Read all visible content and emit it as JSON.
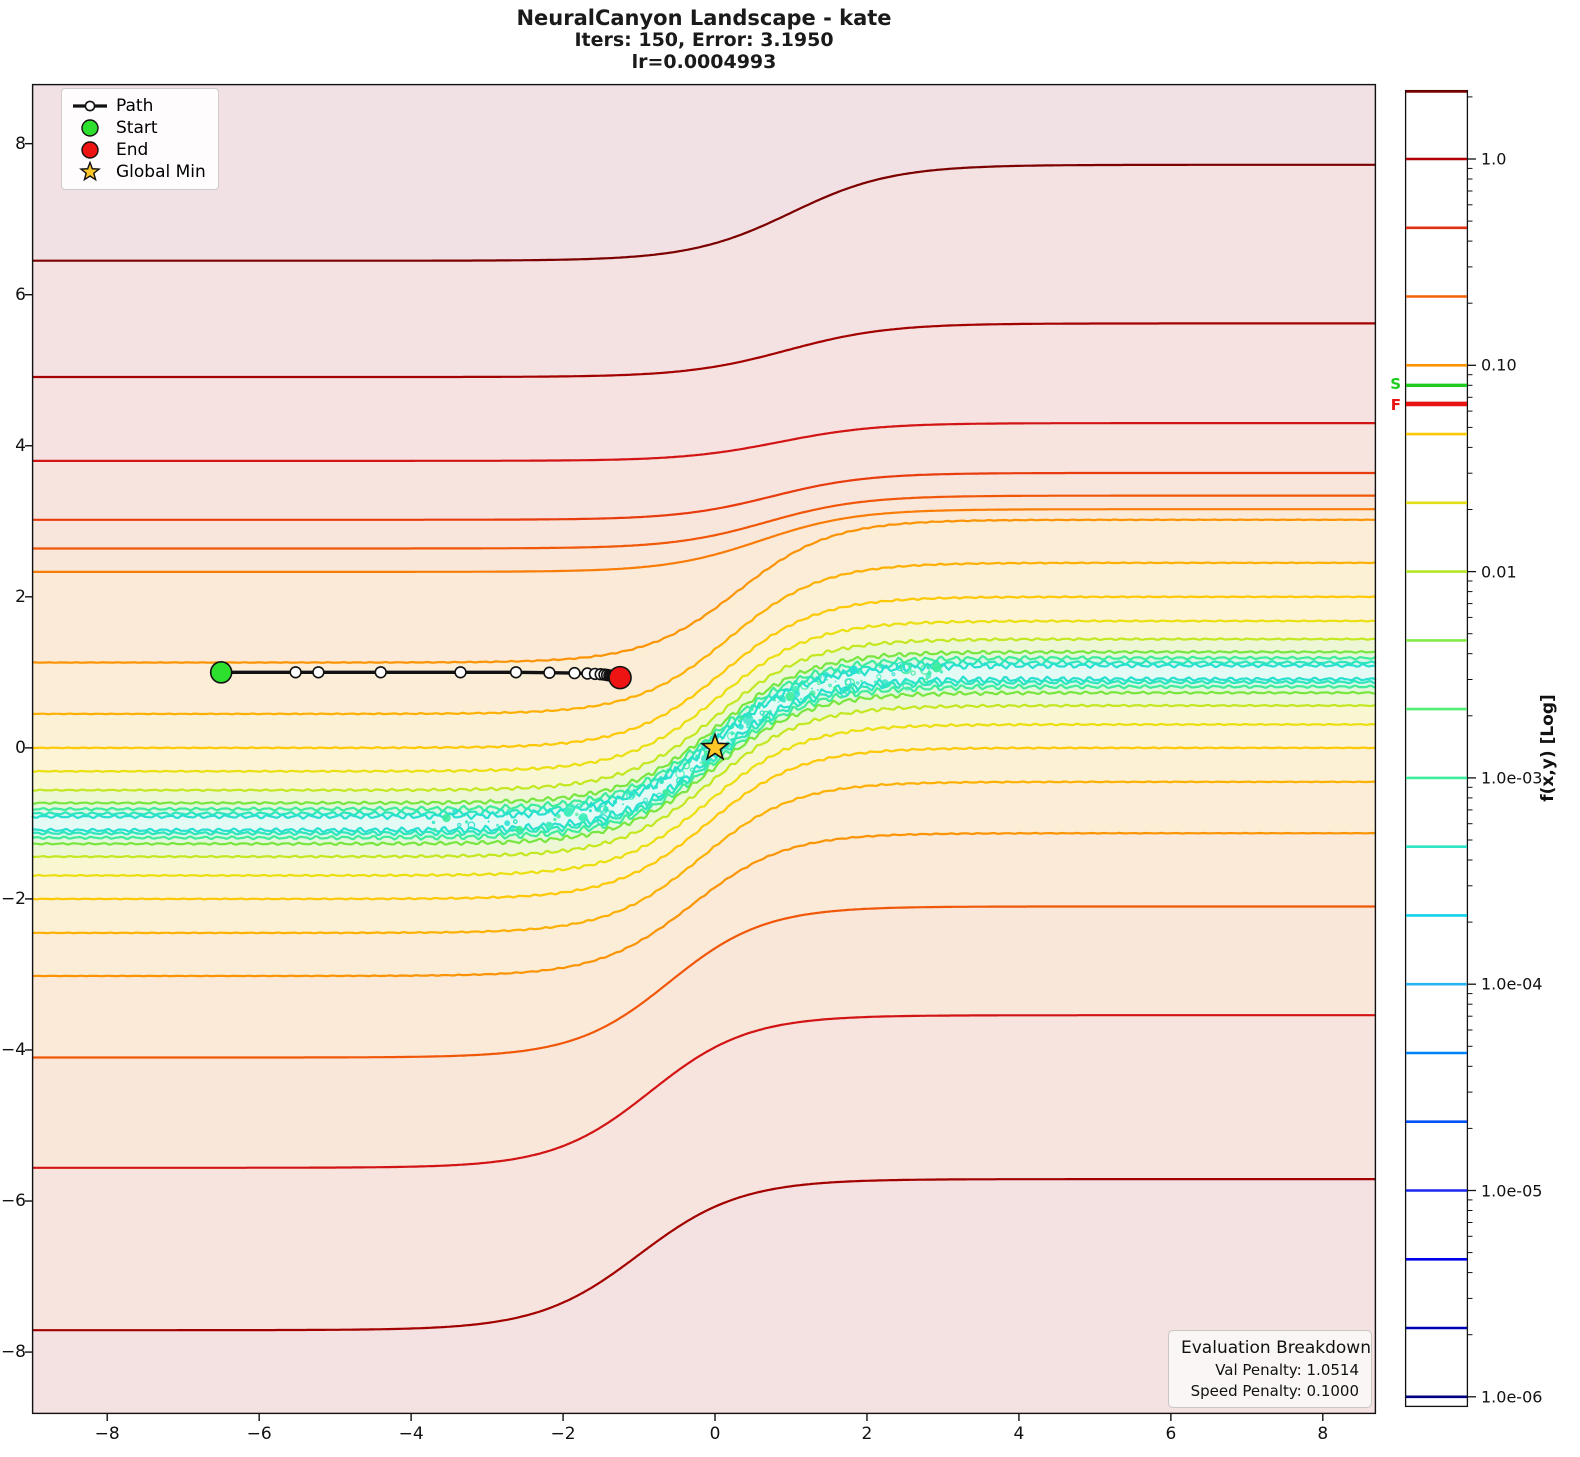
{
  "title": {
    "line1": "NeuralCanyon Landscape - kate",
    "line2": "Iters: 150, Error: 3.1950",
    "line3": "lr=0.0004993"
  },
  "legend": {
    "items": [
      {
        "label": "Path",
        "icon": "path-line-icon"
      },
      {
        "label": "Start",
        "icon": "start-dot-icon",
        "color": "#2ee02e"
      },
      {
        "label": "End",
        "icon": "end-dot-icon",
        "color": "#ee1414"
      },
      {
        "label": "Global Min",
        "icon": "star-icon",
        "color": "#ffc828"
      }
    ]
  },
  "eval_box": {
    "title": "Evaluation Breakdown",
    "row1": "Val Penalty: 1.0514",
    "row2": "Speed Penalty: 0.1000"
  },
  "chart_data": {
    "type": "contour",
    "title": "NeuralCanyon Landscape - kate",
    "subtitle": "Iters: 150, Error: 3.1950",
    "lr_line": "lr=0.0004993",
    "grid": false,
    "axes": {
      "xlim": [
        -8.99,
        8.7
      ],
      "ylim": [
        -8.82,
        8.79
      ],
      "x_ticks": [
        {
          "v": -8,
          "label": "−8"
        },
        {
          "v": -6,
          "label": "−6"
        },
        {
          "v": -4,
          "label": "−4"
        },
        {
          "v": -2,
          "label": "−2"
        },
        {
          "v": 0,
          "label": "0"
        },
        {
          "v": 2,
          "label": "2"
        },
        {
          "v": 4,
          "label": "4"
        },
        {
          "v": 6,
          "label": "6"
        },
        {
          "v": 8,
          "label": "8"
        }
      ],
      "y_ticks": [
        {
          "v": 8,
          "label": "8"
        },
        {
          "v": 6,
          "label": "6"
        },
        {
          "v": 4,
          "label": "4"
        },
        {
          "v": 2,
          "label": "2"
        },
        {
          "v": 0,
          "label": "0"
        },
        {
          "v": -2,
          "label": "−2"
        },
        {
          "v": -4,
          "label": "−4"
        },
        {
          "v": -6,
          "label": "−6"
        },
        {
          "v": -8,
          "label": "−8"
        }
      ]
    },
    "canyon": {
      "center_formula": "y = tanh(0.82 x)",
      "k": 0.82,
      "left_floor": -1,
      "right_floor": 1
    },
    "contour_lines": [
      {
        "L": 6.45,
        "R": 7.72,
        "k": 0.75,
        "s": 1.0,
        "color": "#7d0000",
        "w": 0
      },
      {
        "L": 4.91,
        "R": 5.62,
        "k": 0.75,
        "s": 0.95,
        "color": "#a30000",
        "w": 0
      },
      {
        "L": 3.8,
        "R": 4.3,
        "k": 0.78,
        "s": 0.85,
        "color": "#d31414",
        "w": 0
      },
      {
        "L": 3.02,
        "R": 3.64,
        "k": 0.8,
        "s": 0.75,
        "color": "#e83c0e",
        "w": 0
      },
      {
        "L": 2.64,
        "R": 3.34,
        "k": 0.8,
        "s": 0.68,
        "color": "#f05708",
        "w": 0
      },
      {
        "L": 2.33,
        "R": 3.16,
        "k": 0.8,
        "s": 0.6,
        "color": "#f87c06",
        "w": 0
      },
      {
        "L": 1.13,
        "R": 3.02,
        "k": 0.82,
        "s": 0.3,
        "color": "#fa9405",
        "w": 0.006
      },
      {
        "L": 0.45,
        "R": 2.45,
        "k": 0.82,
        "s": 0.18,
        "color": "#fcb004",
        "w": 0.008
      },
      {
        "L": 0.0,
        "R": 2.0,
        "k": 0.82,
        "s": 0.1,
        "color": "#fdc805",
        "w": 0.01
      },
      {
        "L": -0.31,
        "R": 1.68,
        "k": 0.82,
        "s": 0.06,
        "color": "#ecdf10",
        "w": 0.014
      },
      {
        "L": -0.56,
        "R": 1.44,
        "k": 0.82,
        "s": 0.04,
        "color": "#c3e822",
        "w": 0.018
      },
      {
        "L": -0.73,
        "R": 1.27,
        "k": 0.82,
        "s": 0.02,
        "color": "#79e63f",
        "w": 0.024
      },
      {
        "d": 0.19,
        "color": "#3fec99",
        "w": 0.034
      },
      {
        "d": 0.13,
        "color": "#2ee6bb",
        "w": 0.038
      },
      {
        "d": 0.09,
        "color": "#28e0d0",
        "w": 0.042
      },
      {
        "d": -0.09,
        "color": "#28e0d0",
        "w": 0.042
      },
      {
        "d": -0.13,
        "color": "#2ee6bb",
        "w": 0.038
      },
      {
        "d": -0.19,
        "color": "#3fec99",
        "w": 0.034
      },
      {
        "L": -1.27,
        "R": 0.73,
        "k": 0.82,
        "s": -0.02,
        "color": "#79e63f",
        "w": 0.024
      },
      {
        "L": -1.44,
        "R": 0.56,
        "k": 0.82,
        "s": -0.04,
        "color": "#c3e822",
        "w": 0.018
      },
      {
        "L": -1.69,
        "R": 0.31,
        "k": 0.82,
        "s": -0.06,
        "color": "#ecdf10",
        "w": 0.014
      },
      {
        "L": -2.0,
        "R": 0.0,
        "k": 0.82,
        "s": -0.1,
        "color": "#fdc805",
        "w": 0.01
      },
      {
        "L": -2.45,
        "R": -0.45,
        "k": 0.82,
        "s": -0.18,
        "color": "#fcb004",
        "w": 0.008
      },
      {
        "L": -3.02,
        "R": -1.13,
        "k": 0.82,
        "s": -0.3,
        "color": "#fa9405",
        "w": 0.006
      },
      {
        "L": -4.1,
        "R": -2.1,
        "k": 0.8,
        "s": -0.6,
        "color": "#f05708",
        "w": 0
      },
      {
        "L": -5.56,
        "R": -3.54,
        "k": 0.78,
        "s": -0.85,
        "color": "#d31414",
        "w": 0
      },
      {
        "L": -7.71,
        "R": -5.71,
        "k": 0.75,
        "s": -1.0,
        "color": "#a30000",
        "w": 0
      }
    ],
    "band_fills": [
      "#f2e1e4",
      "#f4e1e2",
      "#f6e2e0",
      "#f7e4de",
      "#f8e5dc",
      "#f9e7da",
      "#fbead7",
      "#fbedd6",
      "#fcf0d5",
      "#fcf4d4",
      "#f8f7d2",
      "#eef7d5",
      "#e3f7dd",
      "#daf6e7",
      "#d9f7ee",
      "#e4faf4",
      "#d9f7ee",
      "#daf6e7",
      "#e3f7dd",
      "#eef7d5",
      "#f8f7d2",
      "#fcf4d4",
      "#fcf0d5",
      "#fbedd6",
      "#fbead7",
      "#f9e7da",
      "#f7e4de",
      "#f4e1e2"
    ],
    "path": {
      "color": "#111111",
      "points": [
        [
          -6.5,
          1.0
        ],
        [
          -5.52,
          1.0
        ],
        [
          -5.22,
          1.0
        ],
        [
          -4.4,
          1.0
        ],
        [
          -3.35,
          1.0
        ],
        [
          -2.62,
          1.0
        ],
        [
          -2.18,
          0.995
        ],
        [
          -1.85,
          0.99
        ],
        [
          -1.68,
          0.985
        ],
        [
          -1.58,
          0.98
        ],
        [
          -1.505,
          0.975
        ],
        [
          -1.455,
          0.97
        ],
        [
          -1.42,
          0.965
        ],
        [
          -1.39,
          0.96
        ],
        [
          -1.37,
          0.955
        ],
        [
          -1.35,
          0.95
        ],
        [
          -1.335,
          0.946
        ],
        [
          -1.32,
          0.943
        ],
        [
          -1.31,
          0.94
        ],
        [
          -1.3,
          0.937
        ],
        [
          -1.29,
          0.935
        ],
        [
          -1.28,
          0.933
        ]
      ]
    },
    "start": {
      "x": -6.5,
      "y": 1.0,
      "color": "#2ee02e"
    },
    "end": {
      "x": -1.25,
      "y": 0.93,
      "color": "#ee1414"
    },
    "global_min": {
      "x": 0,
      "y": 0,
      "color": "#ffc828"
    },
    "speckles": {
      "seed": 7,
      "count": 150,
      "x_range": [
        -3.8,
        3.4
      ],
      "spread": 0.3,
      "colors": [
        "#2ee4c4",
        "#3cec9c",
        "#26dfd2",
        "#40eebb"
      ]
    },
    "colorbar": {
      "label": "f(x,y) [Log]",
      "value_min": 1e-06,
      "value_max": 2.154,
      "levels_per_decade": 3,
      "major_ticks": [
        {
          "v": 1.0,
          "label": "1.0"
        },
        {
          "v": 0.1,
          "label": "0.10"
        },
        {
          "v": 0.01,
          "label": "0.01"
        },
        {
          "v": 0.001,
          "label": "1.0e-03"
        },
        {
          "v": 0.0001,
          "label": "1.0e-04"
        },
        {
          "v": 1e-05,
          "label": "1.0e-05"
        },
        {
          "v": 1e-06,
          "label": "1.0e-06"
        }
      ],
      "level_colors_bottom_to_top": [
        "#000080",
        "#0000b4",
        "#0000ea",
        "#1c28f0",
        "#0050f8",
        "#0082fa",
        "#2ab4f0",
        "#12d2e8",
        "#2ee4c4",
        "#3cec9c",
        "#54ee74",
        "#84ea48",
        "#b4e628",
        "#e2de14",
        "#fac805",
        "#fa9405",
        "#f26008",
        "#e03210",
        "#b40000",
        "#7d0000"
      ],
      "start_marker": {
        "label": "S",
        "value": 0.08,
        "color": "#1ecc1e"
      },
      "final_marker": {
        "label": "F",
        "value": 0.065,
        "color": "#e81414"
      }
    }
  }
}
